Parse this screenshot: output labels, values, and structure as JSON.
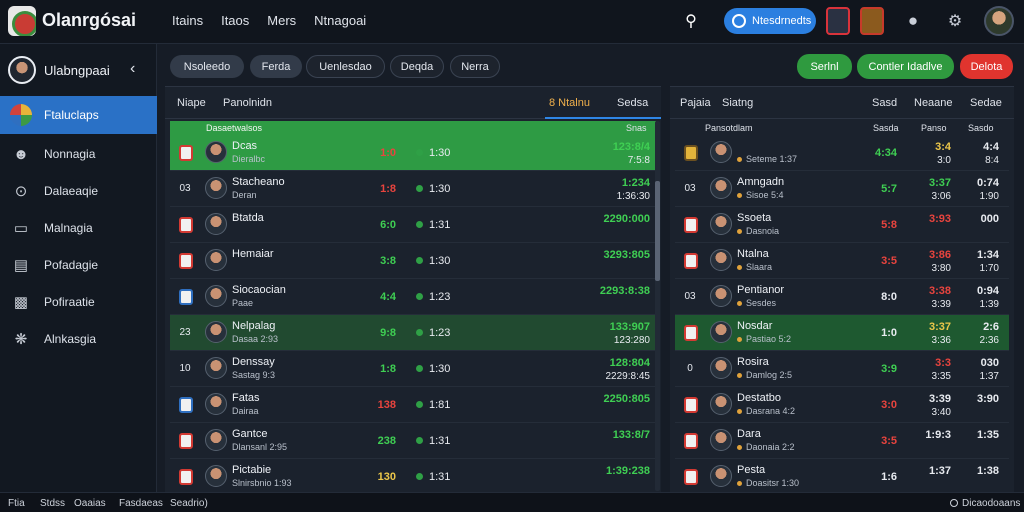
{
  "app": {
    "title": "Olanrgósai"
  },
  "topnav": [
    "Itains",
    "Itaos",
    "Mers",
    "Ntnagoai"
  ],
  "top_pill_label": "Ntesdrnedts",
  "sidebar": {
    "user_name": "Ulabngpaai",
    "items": [
      {
        "label": "Ftaluclaps",
        "icon": "globe-icon"
      },
      {
        "label": "Nonnagia",
        "icon": "user-icon"
      },
      {
        "label": "Dalaeaqie",
        "icon": "signal-icon"
      },
      {
        "label": "Malnagia",
        "icon": "window-icon"
      },
      {
        "label": "Pofadagie",
        "icon": "list-icon"
      },
      {
        "label": "Pofiraatie",
        "icon": "chart-icon"
      },
      {
        "label": "Alnkasgia",
        "icon": "network-icon"
      }
    ]
  },
  "filters": [
    "Nsoleedo",
    "Ferda",
    "Uenlesdao",
    "Deqda",
    "Nerra"
  ],
  "actions": {
    "primary": "Serlnl",
    "secondary": "Contler Idadlve",
    "danger": "Delota"
  },
  "left_panel": {
    "tabs": [
      "Niape",
      "Panolnidn",
      "8 Ntalnu",
      "Sedsa"
    ],
    "header_row": "Dasaetwalsos",
    "col_right_label": "Snas",
    "rows": [
      {
        "rank": "",
        "name": "Dcas",
        "sub": "Dieralbc",
        "v1": "1:0",
        "v1c": "v-red",
        "v2": "1:30",
        "a": "123:8/4",
        "b": "7:5:8",
        "hl": "hl-green"
      },
      {
        "rank": "03",
        "name": "Stacheano",
        "sub": "Deran",
        "v1": "1:8",
        "v1c": "v-red",
        "v2": "1:30",
        "a": "1:234",
        "b": "1:36:30",
        "hl": ""
      },
      {
        "rank": "",
        "name": "Btatda",
        "sub": "",
        "v1": "6:0",
        "v1c": "v-green",
        "v2": "1:31",
        "a": "2290:000",
        "b": "",
        "hl": ""
      },
      {
        "rank": "",
        "name": "Hemaiar",
        "sub": "",
        "v1": "3:8",
        "v1c": "v-green",
        "v2": "1:30",
        "a": "3293:805",
        "b": "",
        "hl": ""
      },
      {
        "rank": "",
        "name": "Siocaocian",
        "sub": "Paae",
        "v1": "4:4",
        "v1c": "v-green",
        "v2": "1:23",
        "a": "2293:8:38",
        "b": "",
        "hl": ""
      },
      {
        "rank": "23",
        "name": "Nelpalag",
        "sub": "Dasaa 2:93",
        "v1": "9:8",
        "v1c": "v-green",
        "v2": "1:23",
        "a": "133:907",
        "b": "123:280",
        "hl": "hl-soft"
      },
      {
        "rank": "10",
        "name": "Denssay",
        "sub": "Sastag 9:3",
        "v1": "1:8",
        "v1c": "v-green",
        "v2": "1:30",
        "a": "128:804",
        "b": "2229:8:45",
        "hl": ""
      },
      {
        "rank": "",
        "name": "Fatas",
        "sub": "Dairaa",
        "v1": "138",
        "v1c": "v-red",
        "v2": "1:81",
        "a": "2250:805",
        "b": "",
        "hl": ""
      },
      {
        "rank": "",
        "name": "Gantce",
        "sub": "Dlansanl 2:95",
        "v1": "238",
        "v1c": "v-green",
        "v2": "1:31",
        "a": "133:8/7",
        "b": "",
        "hl": ""
      },
      {
        "rank": "",
        "name": "Pictabie",
        "sub": "Slnirsbnio 1:93",
        "v1": "130",
        "v1c": "v-yellow",
        "v2": "1:31",
        "a": "1:39:238",
        "b": "",
        "hl": ""
      }
    ]
  },
  "right_panel": {
    "tabs": [
      "Pajaia",
      "Siatng",
      "Sasd",
      "Neaane",
      "Sedae"
    ],
    "header_row": "Pansotdlam",
    "cols": [
      "Sasda",
      "Panso",
      "Sasdo"
    ],
    "rows": [
      {
        "rank": "",
        "name": "",
        "sub": "Seteme 1:37",
        "c1": "4:34",
        "c1c": "v-green",
        "c2": "3:4",
        "c2b": "3:0",
        "c2c": "v-yellow",
        "c3": "4:4",
        "c3b": "8:4",
        "hl": ""
      },
      {
        "rank": "03",
        "name": "Amngadn",
        "sub": "Sisoe 5:4",
        "c1": "5:7",
        "c1c": "v-green",
        "c2": "3:37",
        "c2b": "3:06",
        "c2c": "v-green",
        "c3": "0:74",
        "c3b": "1:90",
        "hl": ""
      },
      {
        "rank": "",
        "name": "Ssoeta",
        "sub": "Dasnoia",
        "c1": "5:8",
        "c1c": "v-red",
        "c2": "3:93",
        "c2b": "",
        "c2c": "v-red",
        "c3": "000",
        "c3b": "",
        "hl": ""
      },
      {
        "rank": "",
        "name": "Ntalna",
        "sub": "Slaara",
        "c1": "3:5",
        "c1c": "v-red",
        "c2": "3:86",
        "c2b": "3:80",
        "c2c": "v-red",
        "c3": "1:34",
        "c3b": "1:70",
        "hl": ""
      },
      {
        "rank": "03",
        "name": "Pentianor",
        "sub": "Sesdes",
        "c1": "8:0",
        "c1c": "v-white",
        "c2": "3:38",
        "c2b": "3:39",
        "c2c": "v-red",
        "c3": "0:94",
        "c3b": "1:39",
        "hl": ""
      },
      {
        "rank": "",
        "name": "Nosdar",
        "sub": "Pastiao 5:2",
        "c1": "1:0",
        "c1c": "v-white",
        "c2": "3:37",
        "c2b": "3:36",
        "c2c": "v-yellow",
        "c3": "2:6",
        "c3b": "2:36",
        "hl": "hl-right"
      },
      {
        "rank": "0",
        "name": "Rosira",
        "sub": "Damlog 2:5",
        "c1": "3:9",
        "c1c": "v-green",
        "c2": "3:3",
        "c2b": "3:35",
        "c2c": "v-red",
        "c3": "030",
        "c3b": "1:37",
        "hl": ""
      },
      {
        "rank": "",
        "name": "Destatbo",
        "sub": "Dasrana 4:2",
        "c1": "3:0",
        "c1c": "v-red",
        "c2": "3:39",
        "c2b": "3:40",
        "c2c": "v-white",
        "c3": "3:90",
        "c3b": "",
        "hl": ""
      },
      {
        "rank": "",
        "name": "Dara",
        "sub": "Daonaia 2:2",
        "c1": "3:5",
        "c1c": "v-red",
        "c2": "1:9:3",
        "c2b": "",
        "c2c": "v-white",
        "c3": "1:35",
        "c3b": "",
        "hl": ""
      },
      {
        "rank": "",
        "name": "Pesta",
        "sub": "Doasitsr 1:30",
        "c1": "1:6",
        "c1c": "v-white",
        "c2": "1:37",
        "c2b": "",
        "c2c": "v-white",
        "c3": "1:38",
        "c3b": "",
        "hl": ""
      }
    ]
  },
  "footer": {
    "items": [
      "Ftia",
      "Stdss",
      "Oaaias",
      "Fasdaeas",
      "Seadrio)"
    ],
    "status": "Dicaodoaans"
  }
}
